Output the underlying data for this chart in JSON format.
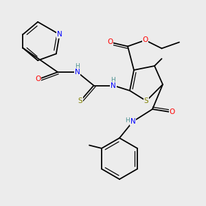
{
  "bg_color": "#ececec",
  "atom_colors": {
    "N": "#0000ff",
    "O": "#ff0000",
    "S_thio": "#808000",
    "S_ring": "#808000",
    "C": "#000000",
    "H": "#4a9090"
  },
  "bond_color": "#000000"
}
